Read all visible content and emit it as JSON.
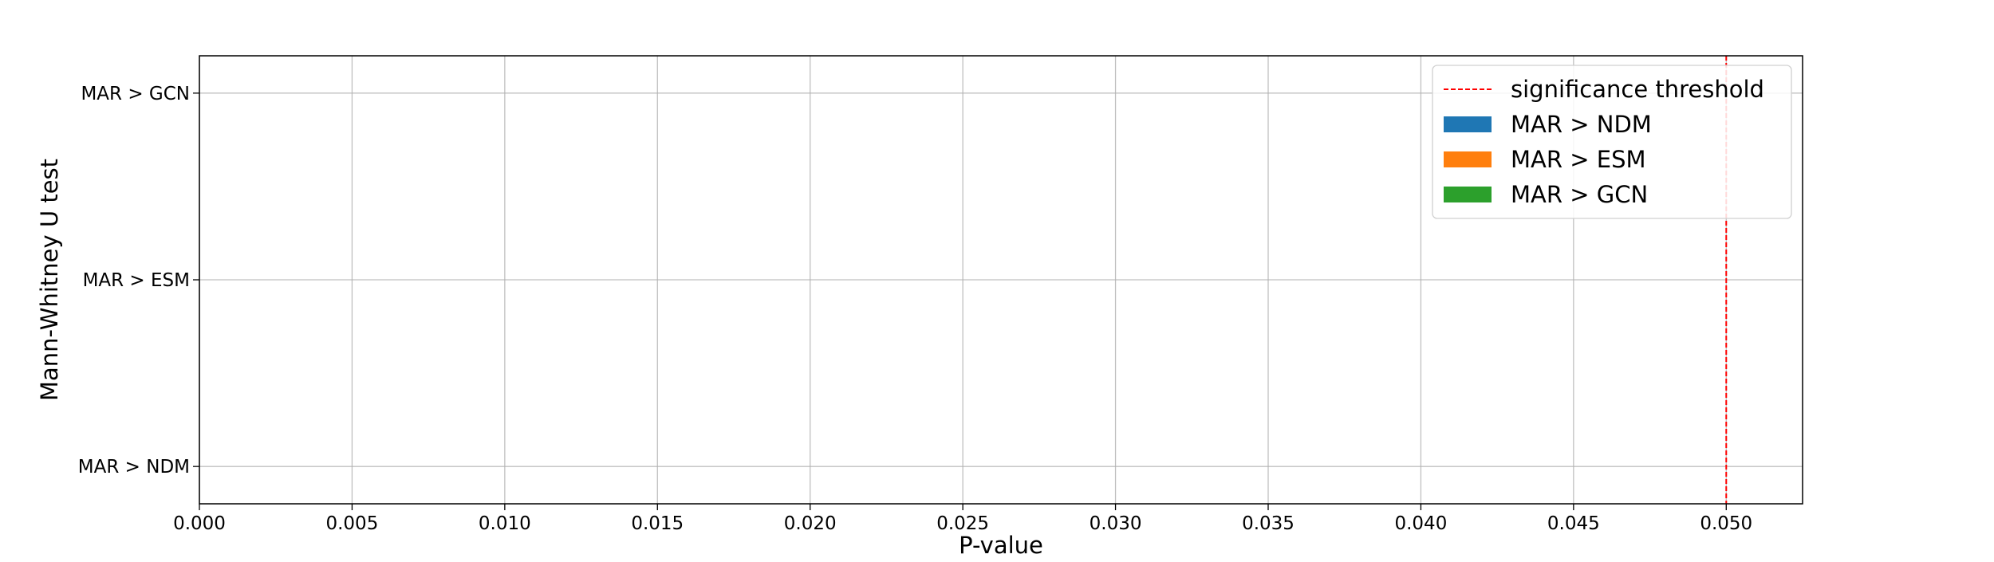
{
  "chart_data": {
    "type": "bar",
    "orientation": "horizontal",
    "xlabel": "P-value",
    "ylabel": "Mann-Whitney U test",
    "xlim": [
      0.0,
      0.0525
    ],
    "xticks": [
      0.0,
      0.005,
      0.01,
      0.015,
      0.02,
      0.025,
      0.03,
      0.035,
      0.04,
      0.045,
      0.05
    ],
    "xtick_labels": [
      "0.000",
      "0.005",
      "0.010",
      "0.015",
      "0.020",
      "0.025",
      "0.030",
      "0.035",
      "0.040",
      "0.045",
      "0.050"
    ],
    "categories": [
      "MAR > NDM",
      "MAR > ESM",
      "MAR > GCN"
    ],
    "series": [
      {
        "name": "MAR > NDM",
        "color": "#1f77b4",
        "values": [
          0,
          null,
          null
        ]
      },
      {
        "name": "MAR > ESM",
        "color": "#ff7f0e",
        "values": [
          null,
          0,
          null
        ]
      },
      {
        "name": "MAR > GCN",
        "color": "#2ca02c",
        "values": [
          null,
          null,
          0
        ]
      }
    ],
    "reference_line": {
      "axis": "x",
      "value": 0.05,
      "style": "dashed",
      "color": "#ff0000",
      "label": "significance threshold"
    },
    "grid": true,
    "legend_position": "top-right"
  }
}
